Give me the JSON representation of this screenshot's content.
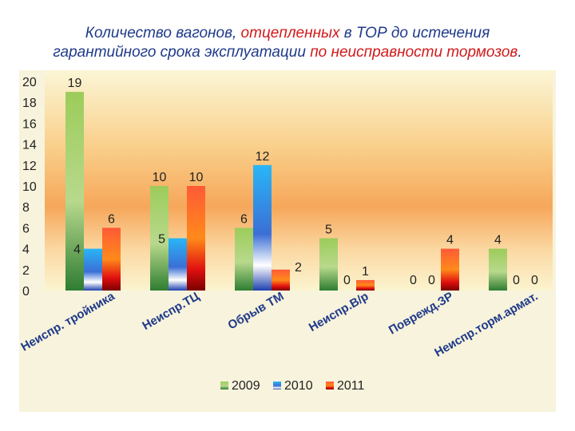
{
  "title": {
    "line1_a": "Количество вагонов, ",
    "line1_b": "отцепленных",
    "line1_c": " в ТОР до истечения",
    "line2_a": "гарантийного срока эксплуатации ",
    "line2_b": "по неисправности тормозов",
    "line2_c": "."
  },
  "chart_data": {
    "type": "bar",
    "title": "Количество вагонов, отцепленных в ТОР до истечения гарантийного срока эксплуатации по неисправности тормозов.",
    "categories": [
      "Неиспр. тройника",
      "Неиспр.ТЦ",
      "Обрыв ТМ",
      "Неиспр.В/р",
      "Поврежд.ЗР",
      "Неиспр.торм.армат."
    ],
    "series": [
      {
        "name": "2009",
        "values": [
          19,
          10,
          6,
          5,
          0,
          4
        ],
        "color": "#7fb34a"
      },
      {
        "name": "2010",
        "values": [
          4,
          5,
          12,
          0,
          0,
          0
        ],
        "color": "#2a9df4"
      },
      {
        "name": "2011",
        "values": [
          6,
          10,
          2,
          1,
          4,
          0
        ],
        "color": "#f03030"
      }
    ],
    "ylim": [
      0,
      20
    ],
    "yticks": [
      0,
      2,
      4,
      6,
      8,
      10,
      12,
      14,
      16,
      18,
      20
    ],
    "grid": false,
    "legend_position": "bottom"
  }
}
